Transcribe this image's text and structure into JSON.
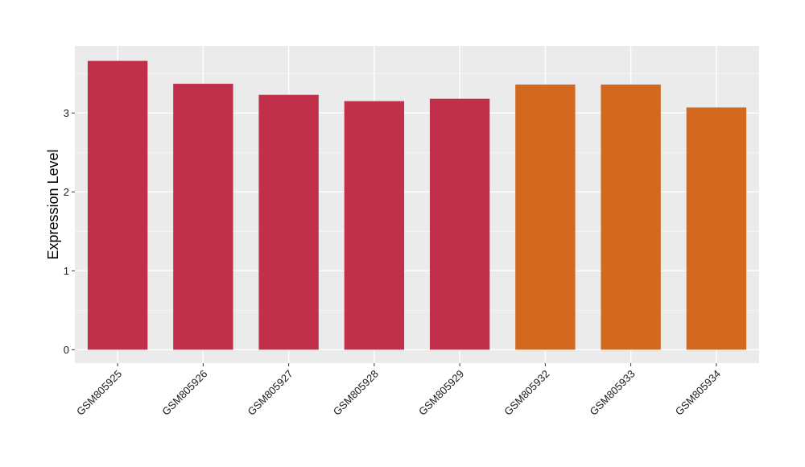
{
  "chart_data": {
    "type": "bar",
    "title": "",
    "xlabel": "",
    "ylabel": "Expression Level",
    "categories": [
      "GSM805925",
      "GSM805926",
      "GSM805927",
      "GSM805928",
      "GSM805929",
      "GSM805932",
      "GSM805933",
      "GSM805934"
    ],
    "values": [
      3.66,
      3.37,
      3.23,
      3.15,
      3.18,
      3.36,
      3.36,
      3.07
    ],
    "groups": [
      "a",
      "a",
      "a",
      "a",
      "a",
      "b",
      "b",
      "b"
    ],
    "group_colors": {
      "a": "#c0304a",
      "b": "#d2691e"
    },
    "ylim": [
      -0.17,
      3.85
    ],
    "yticks": [
      0,
      1,
      2,
      3
    ],
    "grid": true,
    "legend": "none",
    "panel_background": "#ebebeb"
  }
}
